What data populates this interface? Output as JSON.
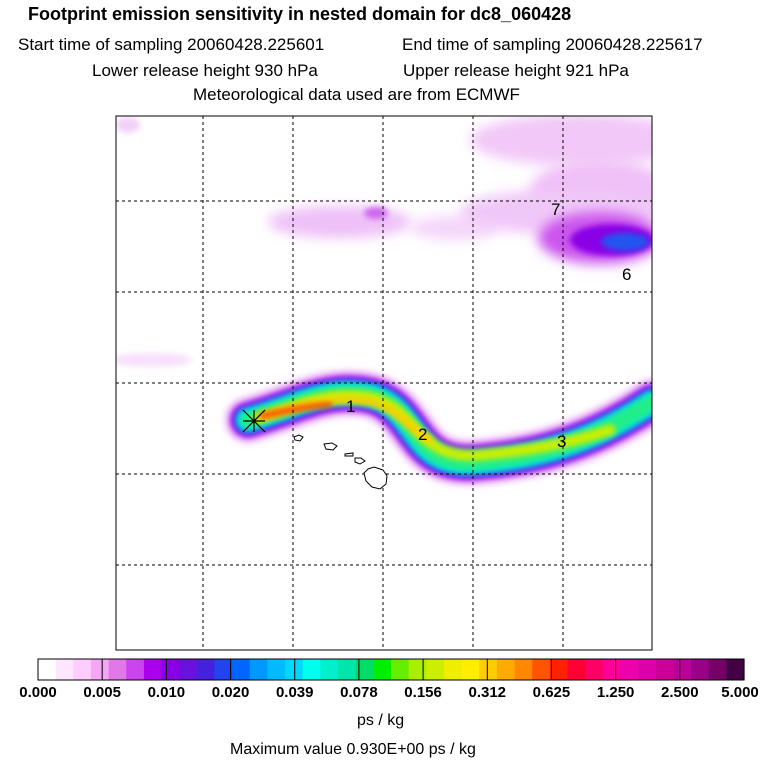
{
  "header": {
    "title": "Footprint emission sensitivity in nested domain for dc8_060428",
    "start_time": "Start time of sampling 20060428.225601",
    "end_time": "End time of sampling 20060428.225617",
    "lower_height": "Lower release height  930 hPa",
    "upper_height": "Upper release height  921 hPa",
    "met_data": "Meteorological data used are from ECMWF"
  },
  "map": {
    "day_labels": [
      "1",
      "2",
      "3",
      "6",
      "7"
    ],
    "release_marker": "release-point-cross"
  },
  "colorbar": {
    "ticks": [
      "0.000",
      "0.005",
      "0.010",
      "0.020",
      "0.039",
      "0.078",
      "0.156",
      "0.312",
      "0.625",
      "1.250",
      "2.500",
      "5.000"
    ],
    "colors": [
      "#ffffff",
      "#ffe6ff",
      "#ffccff",
      "#f5a6f5",
      "#e078e8",
      "#cc44ee",
      "#aa00ee",
      "#8a00e6",
      "#6a12dd",
      "#4422dd",
      "#2244ee",
      "#0066ff",
      "#0099ff",
      "#00bbff",
      "#00d8ff",
      "#00ffee",
      "#00f0cc",
      "#00e6aa",
      "#00dd66",
      "#00ee00",
      "#66ee00",
      "#aaee00",
      "#ccee00",
      "#eeee00",
      "#ffee00",
      "#ffcc00",
      "#ffaa00",
      "#ff8800",
      "#ff5500",
      "#ff2200",
      "#ff0033",
      "#ff0066",
      "#ff0099",
      "#ee00aa",
      "#dd00aa",
      "#cc0099",
      "#bb0099",
      "#990088",
      "#770066",
      "#440044"
    ],
    "units": "ps / kg"
  },
  "footer": {
    "max_value": "Maximum value  0.930E+00 ps / kg"
  }
}
